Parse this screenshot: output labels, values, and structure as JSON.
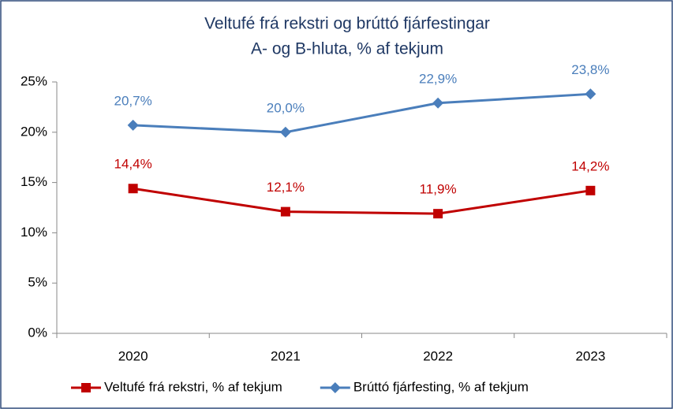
{
  "chart_data": {
    "type": "line",
    "title": "Veltufé frá rekstri og brúttó fjárfestingar",
    "subtitle": "A- og B-hluta, % af tekjum",
    "categories": [
      "2020",
      "2021",
      "2022",
      "2023"
    ],
    "series": [
      {
        "name": "Veltufé frá rekstri, % af tekjum",
        "color": "#c00000",
        "marker": "square",
        "values": [
          14.4,
          12.1,
          11.9,
          14.2
        ],
        "value_labels": [
          "14,4%",
          "12,1%",
          "11,9%",
          "14,2%"
        ]
      },
      {
        "name": "Brúttó fjárfesting, % af tekjum",
        "color": "#4a7ebb",
        "marker": "diamond",
        "values": [
          20.7,
          20.0,
          22.9,
          23.8
        ],
        "value_labels": [
          "20,7%",
          "20,0%",
          "22,9%",
          "23,8%"
        ]
      }
    ],
    "ylim": [
      0,
      25
    ],
    "yticks": [
      {
        "value": 0,
        "label": "0%"
      },
      {
        "value": 5,
        "label": "5%"
      },
      {
        "value": 10,
        "label": "10%"
      },
      {
        "value": 15,
        "label": "15%"
      },
      {
        "value": 20,
        "label": "20%"
      },
      {
        "value": 25,
        "label": "25%"
      }
    ],
    "grid": false,
    "legend": "bottom"
  }
}
